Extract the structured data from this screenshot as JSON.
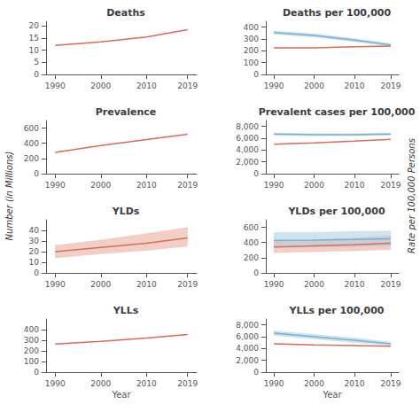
{
  "chart_data": [
    {
      "type": "line",
      "title": "Deaths",
      "x": [
        1990,
        2000,
        2010,
        2019
      ],
      "xlim": [
        1988,
        2021
      ],
      "xticks": [
        1990,
        2000,
        2010,
        2019
      ],
      "ylim": [
        0,
        22
      ],
      "yticks": [
        0,
        5,
        10,
        15,
        20
      ],
      "grid": false,
      "series": [
        {
          "type": "line",
          "color": "#d96b5a",
          "values": [
            12.0,
            13.5,
            15.5,
            18.5
          ]
        }
      ]
    },
    {
      "type": "line",
      "title": "Deaths per 100,000",
      "x": [
        1990,
        2000,
        2010,
        2019
      ],
      "xlim": [
        1988,
        2021
      ],
      "xticks": [
        1990,
        2000,
        2010,
        2019
      ],
      "ylim": [
        0,
        450
      ],
      "yticks": [
        0,
        100,
        200,
        300,
        400
      ],
      "grid": false,
      "series": [
        {
          "type": "band",
          "color": "#aacce0",
          "lower": [
            340,
            315,
            275,
            238
          ],
          "upper": [
            370,
            345,
            305,
            262
          ]
        },
        {
          "type": "line",
          "color": "#7ab0ce",
          "values": [
            355,
            330,
            290,
            250
          ]
        },
        {
          "type": "line",
          "color": "#d96b5a",
          "values": [
            225,
            225,
            235,
            240
          ]
        }
      ]
    },
    {
      "type": "line",
      "title": "Prevalence",
      "ylabel": "Number (in Millions)",
      "x": [
        1990,
        2000,
        2010,
        2019
      ],
      "xlim": [
        1988,
        2021
      ],
      "xticks": [
        1990,
        2000,
        2010,
        2019
      ],
      "ylim": [
        0,
        700
      ],
      "yticks": [
        0,
        200,
        400,
        600
      ],
      "grid": false,
      "series": [
        {
          "type": "line",
          "color": "#d96b5a",
          "values": [
            280,
            370,
            450,
            520
          ]
        }
      ]
    },
    {
      "type": "line",
      "title": "Prevalent cases per 100,000",
      "ylabel": "Rate per 100,000 Persons",
      "x": [
        1990,
        2000,
        2010,
        2019
      ],
      "xlim": [
        1988,
        2021
      ],
      "xticks": [
        1990,
        2000,
        2010,
        2019
      ],
      "ylim": [
        0,
        9000
      ],
      "yticks": [
        0,
        {
          "value": 2000,
          "label": "2,000"
        },
        {
          "value": 4000,
          "label": "4,000"
        },
        {
          "value": 6000,
          "label": "6,000"
        },
        {
          "value": 8000,
          "label": "8,000"
        }
      ],
      "grid": false,
      "series": [
        {
          "type": "band",
          "color": "#aacce0",
          "lower": [
            6500,
            6400,
            6400,
            6500
          ],
          "upper": [
            6900,
            6800,
            6800,
            6900
          ]
        },
        {
          "type": "line",
          "color": "#7ab0ce",
          "values": [
            6700,
            6600,
            6600,
            6700
          ]
        },
        {
          "type": "line",
          "color": "#d96b5a",
          "values": [
            5000,
            5200,
            5500,
            5800
          ]
        }
      ]
    },
    {
      "type": "line",
      "title": "YLDs",
      "x": [
        1990,
        2000,
        2010,
        2019
      ],
      "xlim": [
        1988,
        2021
      ],
      "xticks": [
        1990,
        2000,
        2010,
        2019
      ],
      "ylim": [
        0,
        50
      ],
      "yticks": [
        0,
        10,
        20,
        30,
        40
      ],
      "grid": false,
      "series": [
        {
          "type": "band",
          "color": "#e8a898",
          "lower": [
            14,
            18,
            21,
            25
          ],
          "upper": [
            26,
            31,
            37,
            43
          ]
        },
        {
          "type": "line",
          "color": "#d96b5a",
          "values": [
            20,
            24,
            28,
            33
          ]
        }
      ]
    },
    {
      "type": "line",
      "title": "YLDs per 100,000",
      "x": [
        1990,
        2000,
        2010,
        2019
      ],
      "xlim": [
        1988,
        2021
      ],
      "xticks": [
        1990,
        2000,
        2010,
        2019
      ],
      "ylim": [
        0,
        700
      ],
      "yticks": [
        0,
        200,
        400,
        600
      ],
      "grid": false,
      "series": [
        {
          "type": "band",
          "color": "#e8a898",
          "lower": [
            265,
            278,
            290,
            305
          ],
          "upper": [
            420,
            440,
            460,
            490
          ]
        },
        {
          "type": "band",
          "color": "#aacce0",
          "lower": [
            335,
            338,
            345,
            352
          ],
          "upper": [
            535,
            535,
            548,
            555
          ]
        },
        {
          "type": "line",
          "color": "#7ab0ce",
          "values": [
            430,
            432,
            440,
            448
          ]
        },
        {
          "type": "line",
          "color": "#d96b5a",
          "values": [
            340,
            355,
            370,
            390
          ]
        }
      ]
    },
    {
      "type": "line",
      "title": "YLLs",
      "xlabel": "Year",
      "x": [
        1990,
        2000,
        2010,
        2019
      ],
      "xlim": [
        1988,
        2021
      ],
      "xticks": [
        1990,
        2000,
        2010,
        2019
      ],
      "ylim": [
        0,
        500
      ],
      "yticks": [
        0,
        100,
        200,
        300,
        400
      ],
      "grid": false,
      "series": [
        {
          "type": "line",
          "color": "#d96b5a",
          "values": [
            265,
            290,
            320,
            355
          ]
        }
      ]
    },
    {
      "type": "line",
      "title": "YLLs per 100,000",
      "xlabel": "Year",
      "x": [
        1990,
        2000,
        2010,
        2019
      ],
      "xlim": [
        1988,
        2021
      ],
      "xticks": [
        1990,
        2000,
        2010,
        2019
      ],
      "ylim": [
        0,
        9000
      ],
      "yticks": [
        0,
        {
          "value": 2000,
          "label": "2,000"
        },
        {
          "value": 4000,
          "label": "4,000"
        },
        {
          "value": 6000,
          "label": "6,000"
        },
        {
          "value": 8000,
          "label": "8,000"
        }
      ],
      "grid": false,
      "series": [
        {
          "type": "band",
          "color": "#aacce0",
          "lower": [
            6200,
            5600,
            5000,
            4500
          ],
          "upper": [
            7000,
            6400,
            5800,
            5100
          ]
        },
        {
          "type": "line",
          "color": "#7ab0ce",
          "values": [
            6600,
            6000,
            5400,
            4800
          ]
        },
        {
          "type": "line",
          "color": "#d96b5a",
          "values": [
            4800,
            4600,
            4500,
            4400
          ]
        }
      ]
    }
  ]
}
